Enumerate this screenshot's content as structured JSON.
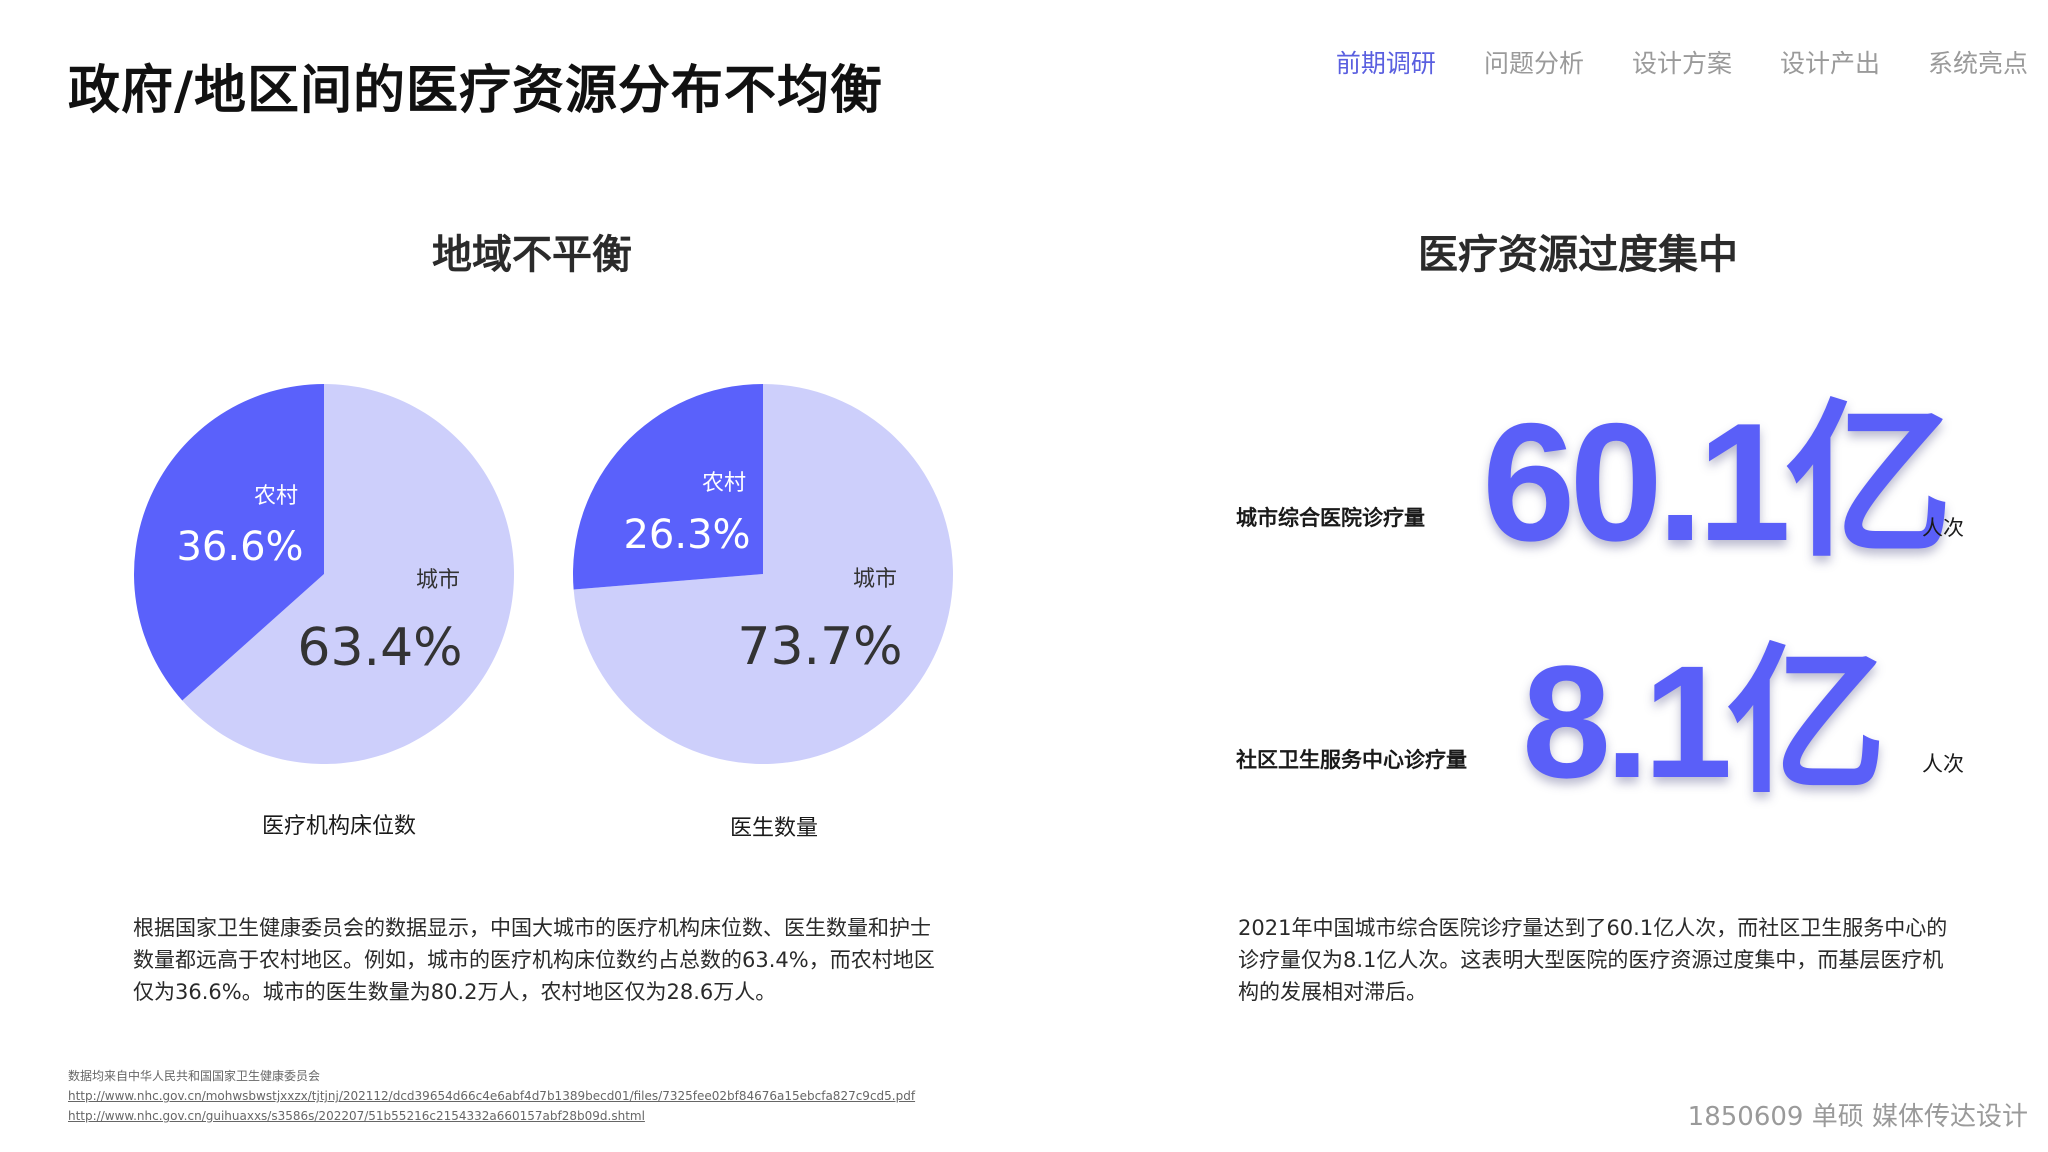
{
  "header": {
    "title": "政府/地区间的医疗资源分布不均衡",
    "nav": [
      "前期调研",
      "问题分析",
      "设计方案",
      "设计产出",
      "系统亮点"
    ],
    "nav_active_index": 0
  },
  "colors": {
    "rural": "#5a61fb",
    "urban": "#cdcffb",
    "accent": "#5a5fe0",
    "big_number": "#5a5ff8"
  },
  "left": {
    "heading": "地域不平衡",
    "paragraph": [
      "根据国家卫生健康委员会的数据显示，中国大城市的医疗机构床位数、医生数量和护士",
      "数量都远高于农村地区。例如，城市的医疗机构床位数约占总数的63.4%，而农村地区",
      "仅为36.6%。城市的医生数量为80.2万人，农村地区仅为28.6万人。"
    ]
  },
  "chart_data": [
    {
      "type": "pie",
      "title": "医疗机构床位数",
      "categories": [
        "农村",
        "城市"
      ],
      "values": [
        36.6,
        63.4
      ],
      "value_labels": [
        "36.6%",
        "63.4%"
      ],
      "colors": [
        "#5a61fb",
        "#cdcffb"
      ]
    },
    {
      "type": "pie",
      "title": "医生数量",
      "categories": [
        "农村",
        "城市"
      ],
      "values": [
        26.3,
        73.7
      ],
      "value_labels": [
        "26.3%",
        "73.7%"
      ],
      "colors": [
        "#5a61fb",
        "#cdcffb"
      ]
    }
  ],
  "right": {
    "heading": "医疗资源过度集中",
    "stats": [
      {
        "label": "城市综合医院诊疗量",
        "value": "60.1亿",
        "unit": "人次"
      },
      {
        "label": "社区卫生服务中心诊疗量",
        "value": "8.1亿",
        "unit": "人次"
      }
    ],
    "paragraph": [
      "2021年中国城市综合医院诊疗量达到了60.1亿人次，而社区卫生服务中心的",
      "诊疗量仅为8.1亿人次。这表明大型医院的医疗资源过度集中，而基层医疗机",
      "构的发展相对滞后。"
    ]
  },
  "source": {
    "note": "数据均来自中华人民共和国国家卫生健康委员会",
    "links": [
      "http://www.nhc.gov.cn/mohwsbwstjxxzx/tjtjnj/202112/dcd39654d66c4e6abf4d7b1389becd01/files/7325fee02bf84676a15ebcfa827c9cd5.pdf",
      "http://www.nhc.gov.cn/guihuaxxs/s3586s/202207/51b55216c2154332a660157abf28b09d.shtml"
    ]
  },
  "footer": "1850609 单硕 媒体传达设计"
}
